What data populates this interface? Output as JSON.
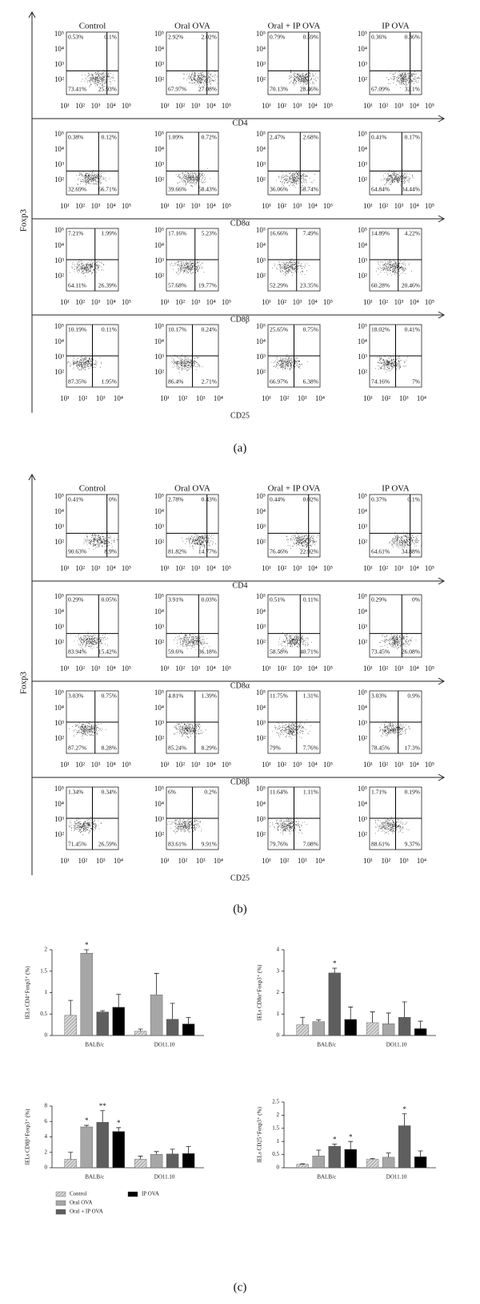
{
  "figure_labels": [
    "(a)",
    "(b)",
    "(c)"
  ],
  "panel_a": {
    "y_label": "Foxp3",
    "columns": [
      "Control",
      "Oral OVA",
      "Oral + IP OVA",
      "IP OVA"
    ],
    "yticks": [
      "10⁵",
      "10⁴",
      "10³",
      "10²"
    ],
    "rows": [
      {
        "x_label": "CD4",
        "xticks": [
          "10¹",
          "10²",
          "10³",
          "10⁴",
          "10⁵"
        ],
        "quadrants": [
          [
            "0.53%",
            "0.1%",
            "73.41%",
            "25.93%"
          ],
          [
            "2.92%",
            "2.02%",
            "67.97%",
            "27.08%"
          ],
          [
            "0.79%",
            "0.59%",
            "70.13%",
            "28.46%"
          ],
          [
            "0.36%",
            "0.36%",
            "67.09%",
            "32.1%"
          ]
        ]
      },
      {
        "x_label": "CD8α",
        "xticks": [
          "10¹",
          "10²",
          "10³",
          "10⁴",
          "10⁵"
        ],
        "quadrants": [
          [
            "0.38%",
            "0.12%",
            "32.69%",
            "66.71%"
          ],
          [
            "1.09%",
            "0.72%",
            "39.66%",
            "58.43%"
          ],
          [
            "2.47%",
            "2.68%",
            "36.06%",
            "58.74%"
          ],
          [
            "0.41%",
            "0.17%",
            "64.84%",
            "34.44%"
          ]
        ]
      },
      {
        "x_label": "CD8β",
        "xticks": [
          "10¹",
          "10²",
          "10³",
          "10⁴",
          "10⁵"
        ],
        "quadrants": [
          [
            "7.21%",
            "1.99%",
            "64.11%",
            "26.39%"
          ],
          [
            "17.16%",
            "5.23%",
            "57.68%",
            "19.77%"
          ],
          [
            "16.66%",
            "7.49%",
            "52.29%",
            "23.35%"
          ],
          [
            "14.89%",
            "4.22%",
            "60.28%",
            "20.46%"
          ]
        ]
      },
      {
        "x_label": "CD25",
        "xticks": [
          "10¹",
          "10²",
          "10³",
          "10⁴"
        ],
        "quadrants": [
          [
            "10.19%",
            "0.11%",
            "87.35%",
            "1.95%"
          ],
          [
            "10.17%",
            "0.24%",
            "86.4%",
            "2.71%"
          ],
          [
            "25.65%",
            "0.75%",
            "66.97%",
            "6.38%"
          ],
          [
            "18.02%",
            "0.41%",
            "74.16%",
            "7%"
          ]
        ]
      }
    ]
  },
  "panel_b": {
    "y_label": "Foxp3",
    "columns": [
      "Control",
      "Oral OVA",
      "Oral + IP OVA",
      "IP OVA"
    ],
    "yticks": [
      "10⁵",
      "10⁴",
      "10³",
      "10²"
    ],
    "rows": [
      {
        "x_label": "CD4",
        "xticks": [
          "10¹",
          "10²",
          "10³",
          "10⁴",
          "10⁵"
        ],
        "quadrants": [
          [
            "0.41%",
            "0%",
            "90.63%",
            "8.9%"
          ],
          [
            "2.78%",
            "0.43%",
            "81.82%",
            "14.77%"
          ],
          [
            "0.44%",
            "0.02%",
            "76.46%",
            "22.92%"
          ],
          [
            "0.37%",
            "0.1%",
            "64.61%",
            "34.88%"
          ]
        ]
      },
      {
        "x_label": "CD8α",
        "xticks": [
          "10¹",
          "10²",
          "10³",
          "10⁴",
          "10⁵"
        ],
        "quadrants": [
          [
            "0.29%",
            "0.05%",
            "83.94%",
            "15.42%"
          ],
          [
            "3.91%",
            "0.03%",
            "59.6%",
            "36.18%"
          ],
          [
            "0.51%",
            "0.11%",
            "58.58%",
            "40.71%"
          ],
          [
            "0.29%",
            "0%",
            "73.45%",
            "26.08%"
          ]
        ]
      },
      {
        "x_label": "CD8β",
        "xticks": [
          "10¹",
          "10²",
          "10³",
          "10⁴",
          "10⁵"
        ],
        "quadrants": [
          [
            "3.03%",
            "0.75%",
            "87.27%",
            "8.28%"
          ],
          [
            "4.81%",
            "1.39%",
            "85.24%",
            "8.29%"
          ],
          [
            "11.75%",
            "1.31%",
            "79%",
            "7.76%"
          ],
          [
            "3.03%",
            "0.9%",
            "78.45%",
            "17.3%"
          ]
        ]
      },
      {
        "x_label": "CD25",
        "xticks": [
          "10¹",
          "10²",
          "10³",
          "10⁴"
        ],
        "quadrants": [
          [
            "1.34%",
            "0.34%",
            "71.45%",
            "26.59%"
          ],
          [
            "6%",
            "0.2%",
            "83.61%",
            "9.91%"
          ],
          [
            "11.64%",
            "1.11%",
            "79.76%",
            "7.08%"
          ],
          [
            "1.71%",
            "0.19%",
            "88.61%",
            "9.37%"
          ]
        ]
      }
    ]
  },
  "chart_data": [
    {
      "type": "bar",
      "y_label": "IELs CD4⁺Foxp3⁺ (%)",
      "categories": [
        "BALB/c",
        "DO11.10"
      ],
      "ylim": [
        0,
        2
      ],
      "yticks": [
        0,
        0.5,
        1,
        1.5,
        2
      ],
      "series": [
        {
          "name": "Control",
          "color": "#d0d0d0",
          "hatch": true,
          "values": [
            0.47,
            0.1
          ],
          "errors": [
            0.35,
            0.05
          ],
          "significance": [
            null,
            null
          ]
        },
        {
          "name": "Oral OVA",
          "color": "#a6a6a6",
          "values": [
            1.92,
            0.95
          ],
          "errors": [
            0.08,
            0.5
          ],
          "significance": [
            "*",
            null
          ]
        },
        {
          "name": "Oral + IP OVA",
          "color": "#5e5e5e",
          "values": [
            0.55,
            0.38
          ],
          "errors": [
            0.03,
            0.37
          ],
          "significance": [
            null,
            null
          ]
        },
        {
          "name": "IP OVA",
          "color": "#000000",
          "values": [
            0.66,
            0.27
          ],
          "errors": [
            0.3,
            0.15
          ],
          "significance": [
            null,
            null
          ]
        }
      ]
    },
    {
      "type": "bar",
      "y_label": "IELs CD8α⁺Foxp3⁺ (%)",
      "categories": [
        "BALB/c",
        "DO11.10"
      ],
      "ylim": [
        0,
        4
      ],
      "yticks": [
        0,
        1,
        2,
        3,
        4
      ],
      "series": [
        {
          "name": "Control",
          "color": "#d0d0d0",
          "hatch": true,
          "values": [
            0.5,
            0.6
          ],
          "errors": [
            0.35,
            0.5
          ],
          "significance": [
            null,
            null
          ]
        },
        {
          "name": "Oral OVA",
          "color": "#a6a6a6",
          "values": [
            0.65,
            0.55
          ],
          "errors": [
            0.08,
            0.5
          ],
          "significance": [
            null,
            null
          ]
        },
        {
          "name": "Oral + IP OVA",
          "color": "#5e5e5e",
          "values": [
            2.92,
            0.85
          ],
          "errors": [
            0.22,
            0.72
          ],
          "significance": [
            "*",
            null
          ]
        },
        {
          "name": "IP OVA",
          "color": "#000000",
          "values": [
            0.75,
            0.32
          ],
          "errors": [
            0.58,
            0.35
          ],
          "significance": [
            null,
            null
          ]
        }
      ]
    },
    {
      "type": "bar",
      "y_label": "IELs CD8β⁺Foxp3⁺ (%)",
      "categories": [
        "BALB/c",
        "DO11.10"
      ],
      "ylim": [
        0,
        8
      ],
      "yticks": [
        0,
        2,
        4,
        6,
        8
      ],
      "legend": "bottom-left",
      "series": [
        {
          "name": "Control",
          "color": "#d0d0d0",
          "hatch": true,
          "values": [
            1.1,
            1.1
          ],
          "errors": [
            0.9,
            0.4
          ],
          "significance": [
            null,
            null
          ]
        },
        {
          "name": "Oral OVA",
          "color": "#a6a6a6",
          "values": [
            5.3,
            1.75
          ],
          "errors": [
            0.2,
            0.35
          ],
          "significance": [
            "*",
            null
          ]
        },
        {
          "name": "Oral + IP OVA",
          "color": "#5e5e5e",
          "values": [
            5.9,
            1.8
          ],
          "errors": [
            1.5,
            0.6
          ],
          "significance": [
            "**",
            null
          ]
        },
        {
          "name": "IP OVA",
          "color": "#000000",
          "values": [
            4.7,
            1.85
          ],
          "errors": [
            0.5,
            0.9
          ],
          "significance": [
            "*",
            null
          ]
        }
      ]
    },
    {
      "type": "bar",
      "y_label": "IELs CD25⁺Foxp3⁺ (%)",
      "categories": [
        "BALB/c",
        "DO11.10"
      ],
      "ylim": [
        0,
        2.5
      ],
      "yticks": [
        0,
        0.5,
        1,
        1.5,
        2,
        2.5
      ],
      "series": [
        {
          "name": "Control",
          "color": "#d0d0d0",
          "hatch": true,
          "values": [
            0.13,
            0.32
          ],
          "errors": [
            0.02,
            0.03
          ],
          "significance": [
            null,
            null
          ]
        },
        {
          "name": "Oral OVA",
          "color": "#a6a6a6",
          "values": [
            0.45,
            0.4
          ],
          "errors": [
            0.22,
            0.16
          ],
          "significance": [
            null,
            null
          ]
        },
        {
          "name": "Oral + IP OVA",
          "color": "#5e5e5e",
          "values": [
            0.82,
            1.6
          ],
          "errors": [
            0.08,
            0.45
          ],
          "significance": [
            "*",
            "*"
          ]
        },
        {
          "name": "IP OVA",
          "color": "#000000",
          "values": [
            0.7,
            0.42
          ],
          "errors": [
            0.3,
            0.22
          ],
          "significance": [
            "*",
            null
          ]
        }
      ]
    }
  ]
}
